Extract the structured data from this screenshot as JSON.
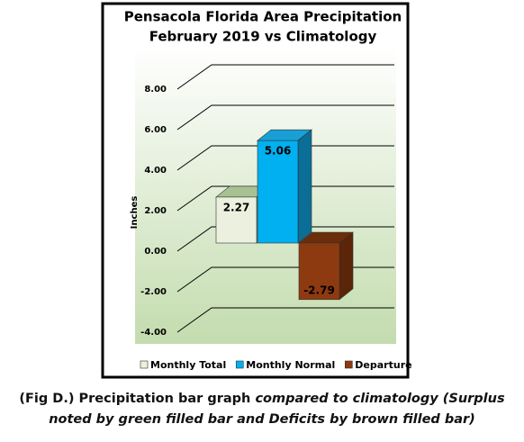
{
  "chart_data": {
    "type": "bar3d",
    "title": [
      "Pensacola Florida Area Precipitation",
      "February 2019 vs Climatology"
    ],
    "y_label": "Inches",
    "categories": [
      "Monthly Total",
      "Monthly Normal",
      "Departure"
    ],
    "values": [
      2.27,
      5.06,
      -2.79
    ],
    "colors": [
      "#ebf1de",
      "#00b0f0",
      "#8e3a10"
    ],
    "ylim": [
      -4,
      8
    ],
    "yticks": [
      {
        "value": -4,
        "label": "-4.00"
      },
      {
        "value": -2,
        "label": "-2.00"
      },
      {
        "value": 0,
        "label": "0.00"
      },
      {
        "value": 2,
        "label": "2.00"
      },
      {
        "value": 4,
        "label": "4.00"
      },
      {
        "value": 6,
        "label": "6.00"
      },
      {
        "value": 8,
        "label": "8.00"
      }
    ],
    "grid": true
  },
  "caption": [
    "(Fig D.) Precipitation bar graph ",
    "compared to climatology (Surplus noted by green filled bar and Deficits by brown filled bar)"
  ]
}
